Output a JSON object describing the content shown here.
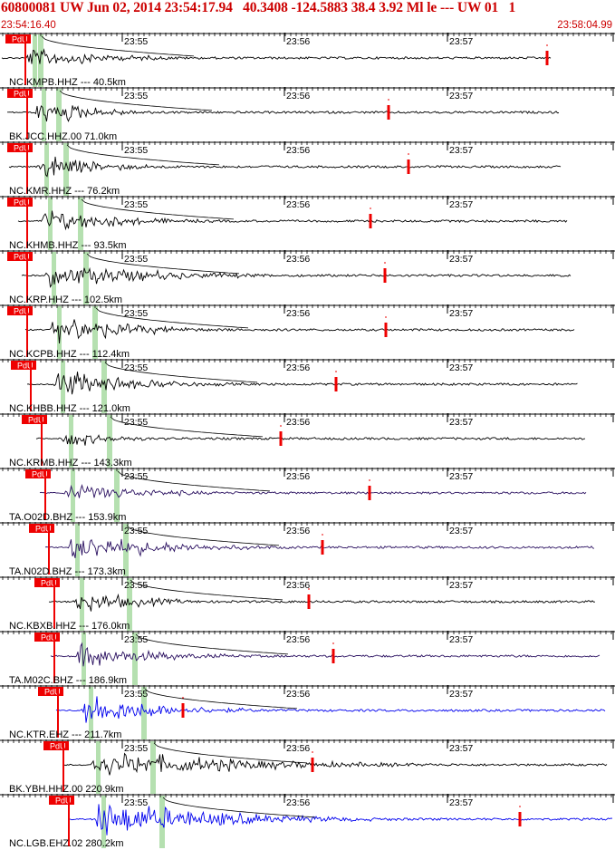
{
  "header": {
    "title": "60800081 UW Jun 02, 2014 23:54:17.94   40.3408 -124.5883 38.4 3.92 Ml le --- UW 01   1",
    "start_time": "23:54:16.40",
    "end_time": "23:58:04.99"
  },
  "time_axis": {
    "tick_labels": [
      "23:55",
      "23:56",
      "23:57"
    ]
  },
  "pick_label": "PdU",
  "colors": {
    "header_red": "#cc0000",
    "pick_red": "#ee0000",
    "phase_green": "#b5e0b0",
    "trace_black": "#000000",
    "trace_purple": "#2a1060",
    "trace_blue": "#0000ee"
  },
  "traces": [
    {
      "label": "NC.KMPB.HHZ --- 40.5km",
      "color": "black"
    },
    {
      "label": "BK.JCC.HHZ.00 71.0km",
      "color": "black"
    },
    {
      "label": "NC.KMR.HHZ --- 76.2km",
      "color": "black"
    },
    {
      "label": "NC.KHMB.HHZ --- 93.5km",
      "color": "black"
    },
    {
      "label": "NC.KRP.HHZ --- 102.5km",
      "color": "black"
    },
    {
      "label": "NC.KCPB.HHZ --- 112.4km",
      "color": "black"
    },
    {
      "label": "NC.KHBB.HHZ --- 121.0km",
      "color": "black"
    },
    {
      "label": "NC.KRMB.HHZ --- 143.3km",
      "color": "black"
    },
    {
      "label": "TA.O02D.BHZ --- 153.9km",
      "color": "purple"
    },
    {
      "label": "TA.N02D.BHZ --- 173.3km",
      "color": "purple"
    },
    {
      "label": "NC.KBXB.HHZ --- 176.0km",
      "color": "black"
    },
    {
      "label": "TA.M02C.BHZ --- 186.9km",
      "color": "purple"
    },
    {
      "label": "NC.KTR.EHZ --- 211.7km",
      "color": "blue"
    },
    {
      "label": "BK.YBH.HHZ.00 220.9km",
      "color": "black"
    },
    {
      "label": "NC.LGB.EHZ.02 280.2km",
      "color": "blue"
    }
  ]
}
